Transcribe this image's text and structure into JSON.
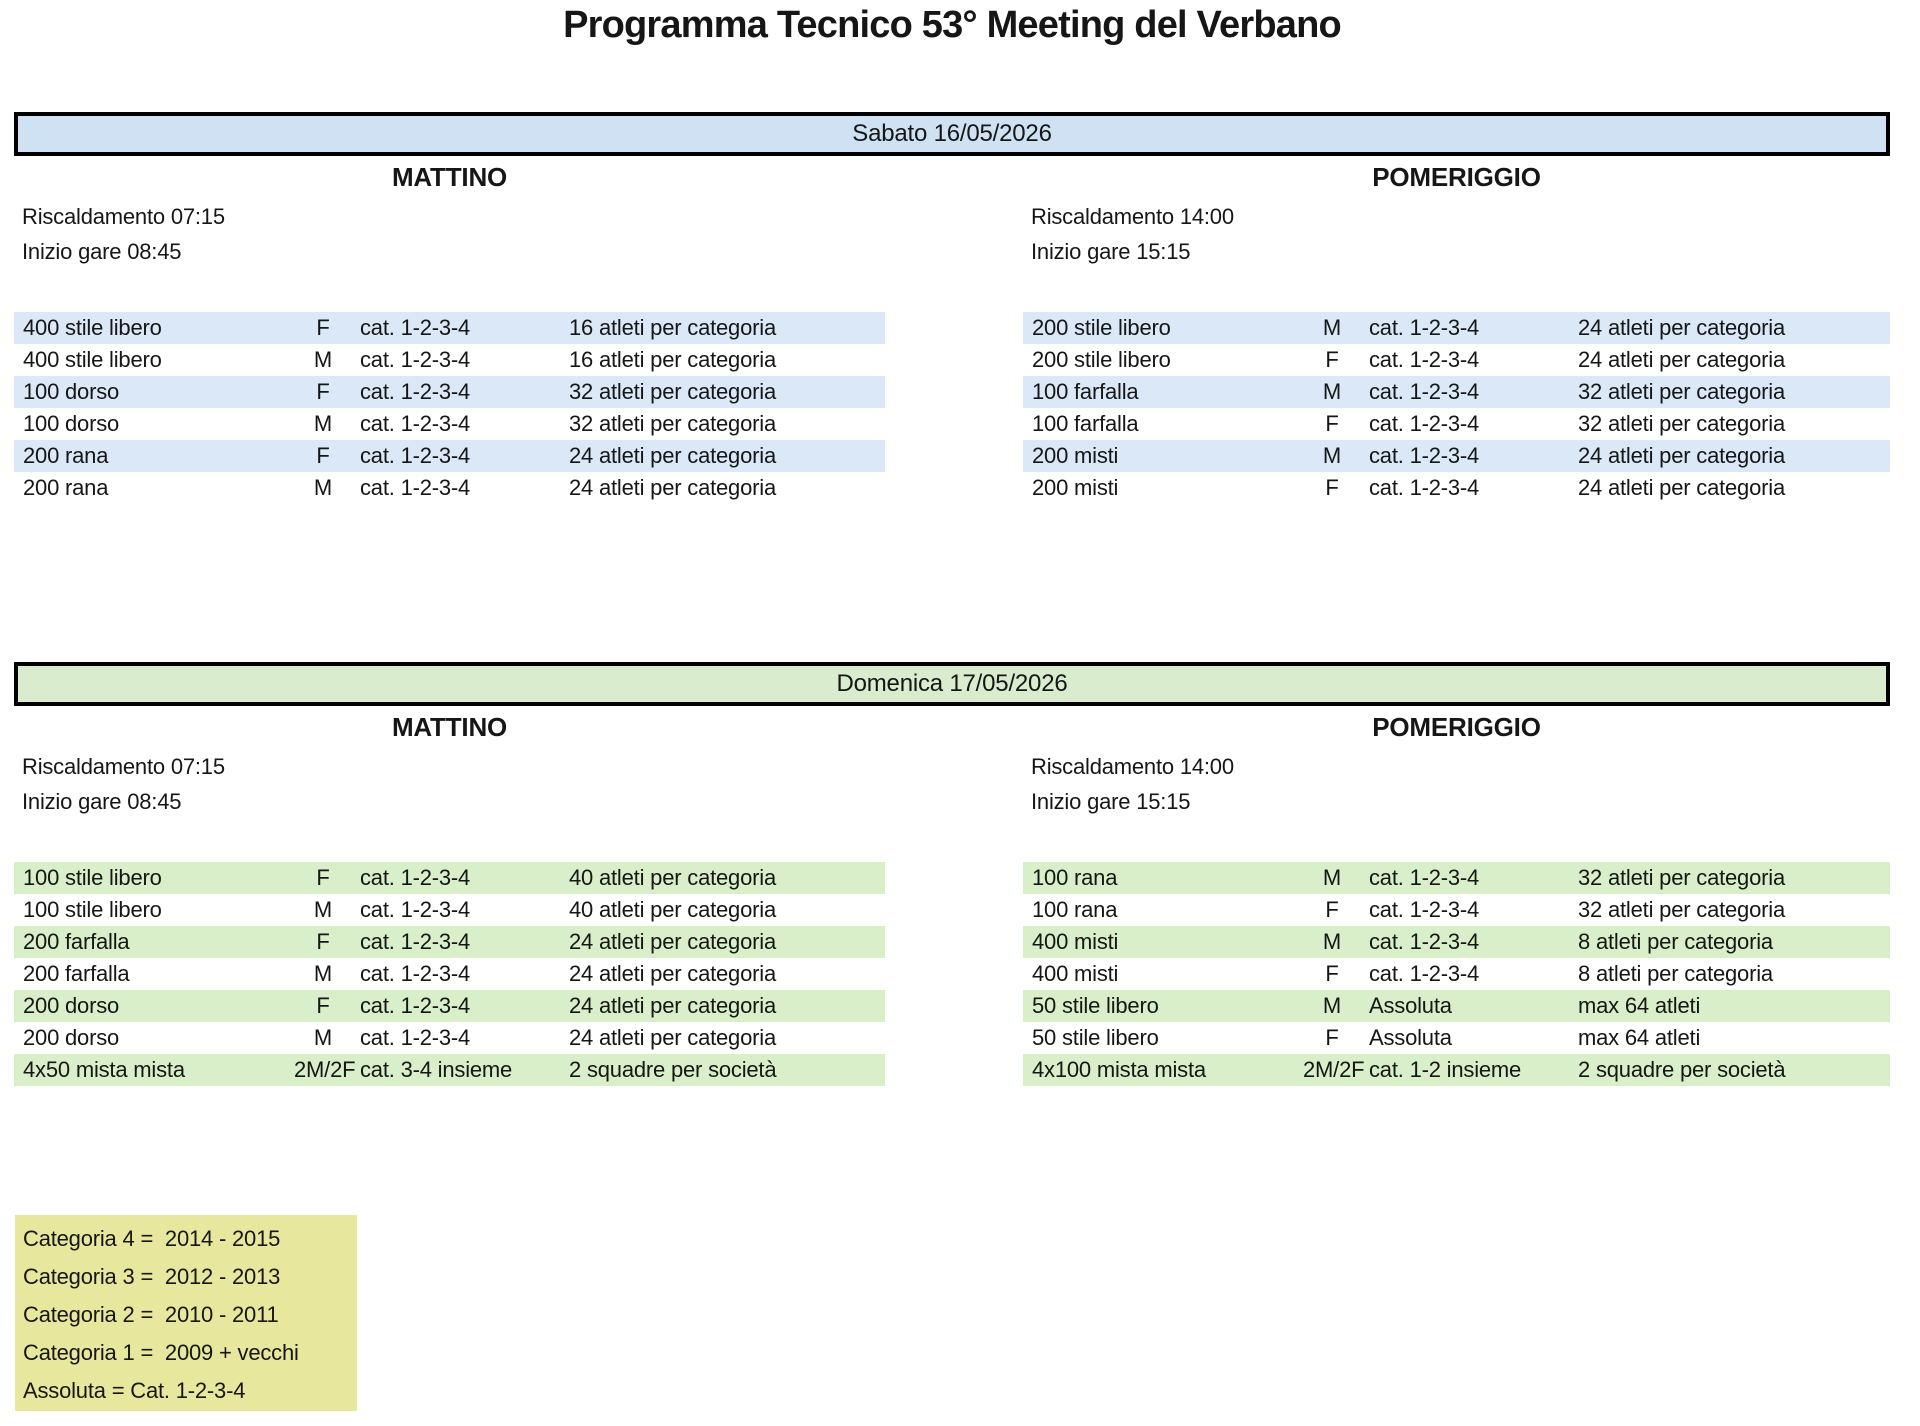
{
  "title": "Programma Tecnico 53° Meeting del Verbano",
  "days": [
    {
      "date_label": "Sabato 16/05/2026",
      "colors": {
        "bar": "#cfe2f4",
        "row": "#dae8f7"
      },
      "sessions": [
        {
          "name": "MATTINO",
          "warmup": "Riscaldamento 07:15",
          "start": "Inizio gare 08:45",
          "events": [
            {
              "event": "400 stile libero",
              "gender": "F",
              "category": "cat. 1-2-3-4",
              "limit": "16 atleti per categoria"
            },
            {
              "event": "400 stile libero",
              "gender": "M",
              "category": "cat. 1-2-3-4",
              "limit": "16 atleti per categoria"
            },
            {
              "event": "100 dorso",
              "gender": "F",
              "category": "cat. 1-2-3-4",
              "limit": "32 atleti per categoria"
            },
            {
              "event": "100 dorso",
              "gender": "M",
              "category": "cat. 1-2-3-4",
              "limit": "32 atleti per categoria"
            },
            {
              "event": "200 rana",
              "gender": "F",
              "category": "cat. 1-2-3-4",
              "limit": "24 atleti per categoria"
            },
            {
              "event": "200 rana",
              "gender": "M",
              "category": "cat. 1-2-3-4",
              "limit": "24 atleti per categoria"
            }
          ]
        },
        {
          "name": "POMERIGGIO",
          "warmup": "Riscaldamento 14:00",
          "start": "Inizio gare 15:15",
          "events": [
            {
              "event": "200 stile libero",
              "gender": "M",
              "category": "cat. 1-2-3-4",
              "limit": "24 atleti per categoria"
            },
            {
              "event": "200 stile libero",
              "gender": "F",
              "category": "cat. 1-2-3-4",
              "limit": "24 atleti per categoria"
            },
            {
              "event": "100 farfalla",
              "gender": "M",
              "category": "cat. 1-2-3-4",
              "limit": "32 atleti per categoria"
            },
            {
              "event": "100 farfalla",
              "gender": "F",
              "category": "cat. 1-2-3-4",
              "limit": "32 atleti per categoria"
            },
            {
              "event": "200 misti",
              "gender": "M",
              "category": "cat. 1-2-3-4",
              "limit": "24 atleti per categoria"
            },
            {
              "event": "200 misti",
              "gender": "F",
              "category": "cat. 1-2-3-4",
              "limit": "24 atleti per categoria"
            }
          ]
        }
      ]
    },
    {
      "date_label": "Domenica 17/05/2026",
      "colors": {
        "bar": "#d9ecce",
        "row": "#d9efca"
      },
      "sessions": [
        {
          "name": "MATTINO",
          "warmup": "Riscaldamento 07:15",
          "start": "Inizio gare 08:45",
          "events": [
            {
              "event": "100 stile libero",
              "gender": "F",
              "category": "cat. 1-2-3-4",
              "limit": "40 atleti per categoria"
            },
            {
              "event": "100 stile libero",
              "gender": "M",
              "category": "cat. 1-2-3-4",
              "limit": "40 atleti per categoria"
            },
            {
              "event": "200 farfalla",
              "gender": "F",
              "category": "cat. 1-2-3-4",
              "limit": "24 atleti per categoria"
            },
            {
              "event": "200 farfalla",
              "gender": "M",
              "category": "cat. 1-2-3-4",
              "limit": "24 atleti per categoria"
            },
            {
              "event": "200 dorso",
              "gender": "F",
              "category": "cat. 1-2-3-4",
              "limit": "24 atleti per categoria"
            },
            {
              "event": "200 dorso",
              "gender": "M",
              "category": "cat. 1-2-3-4",
              "limit": "24 atleti per categoria"
            },
            {
              "event": "4x50 mista mista",
              "gender": "2M/2F",
              "category": "cat. 3-4 insieme",
              "limit": "2 squadre per società"
            }
          ]
        },
        {
          "name": "POMERIGGIO",
          "warmup": "Riscaldamento 14:00",
          "start": "Inizio gare 15:15",
          "events": [
            {
              "event": "100 rana",
              "gender": "M",
              "category": "cat. 1-2-3-4",
              "limit": "32 atleti per categoria"
            },
            {
              "event": "100 rana",
              "gender": "F",
              "category": "cat. 1-2-3-4",
              "limit": "32 atleti per categoria"
            },
            {
              "event": "400 misti",
              "gender": "M",
              "category": "cat. 1-2-3-4",
              "limit": "8 atleti per categoria"
            },
            {
              "event": "400 misti",
              "gender": "F",
              "category": "cat. 1-2-3-4",
              "limit": "8 atleti per categoria"
            },
            {
              "event": "50 stile libero",
              "gender": "M",
              "category": "Assoluta",
              "limit": "max 64 atleti"
            },
            {
              "event": "50 stile libero",
              "gender": "F",
              "category": "Assoluta",
              "limit": "max 64 atleti"
            },
            {
              "event": "4x100 mista mista",
              "gender": "2M/2F",
              "category": "cat. 1-2 insieme",
              "limit": "2 squadre per società"
            }
          ]
        }
      ]
    }
  ],
  "legend": {
    "bg": "#e7e89e",
    "lines": [
      "Categoria 4 =  2014 - 2015",
      "Categoria 3 =  2012 - 2013",
      "Categoria 2 =  2010 - 2011",
      "Categoria 1 =  2009 + vecchi",
      "Assoluta = Cat. 1-2-3-4"
    ]
  }
}
